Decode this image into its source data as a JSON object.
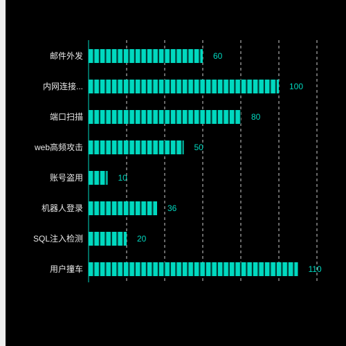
{
  "chart_data": {
    "type": "bar",
    "orientation": "horizontal",
    "categories": [
      "邮件外发",
      "内网连接...",
      "端口扫描",
      "web高频攻击",
      "账号盗用",
      "机器人登录",
      "SQL注入检测",
      "用户撞车"
    ],
    "values": [
      60,
      100,
      80,
      50,
      10,
      36,
      20,
      110
    ],
    "xlim": [
      0,
      120
    ],
    "grid": "vertical-dashed",
    "title": "",
    "xlabel": "",
    "ylabel": "",
    "colors": {
      "background": "#000000",
      "bar": "#00d9c0",
      "bar_stripe": "#003a33",
      "axis": "#00d9c0",
      "grid": "#cfcfcf",
      "category_text": "#e8e8e8",
      "value_text": "#00d9c0"
    }
  }
}
